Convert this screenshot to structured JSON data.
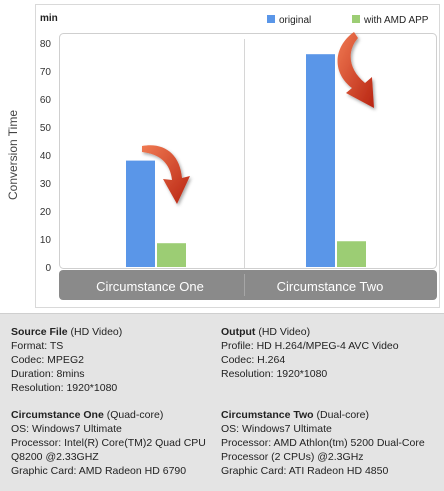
{
  "chart_data": {
    "type": "bar",
    "title": "",
    "unit_label": "min",
    "ylabel": "Conversion Time",
    "xlabel": "",
    "ylim": [
      0,
      80
    ],
    "y_ticks": [
      0,
      10,
      20,
      30,
      40,
      50,
      60,
      70,
      80
    ],
    "categories": [
      "Circumstance One",
      "Circumstance Two"
    ],
    "series": [
      {
        "name": "original",
        "color": "#5a96e8",
        "values": [
          38,
          76
        ]
      },
      {
        "name": "with AMD APP",
        "color": "#9ccd74",
        "values": [
          8.5,
          9.2
        ]
      }
    ],
    "legend_position": "top-right",
    "grid": false,
    "annotations": [
      "red-arrow-down-circumstance-one",
      "red-arrow-down-circumstance-two"
    ],
    "colors": {
      "axis_band": "#8a8a8a",
      "arrow": "#d93a1f"
    }
  },
  "info": {
    "source": {
      "title": "Source File",
      "subtitle": " (HD Video)",
      "lines": [
        "Format: TS",
        "Codec: MPEG2",
        "Duration: 8mins",
        "Resolution: 1920*1080"
      ]
    },
    "output": {
      "title": "Output",
      "subtitle": " (HD Video)",
      "lines": [
        "Profile: HD H.264/MPEG-4 AVC Video",
        "Codec: H.264",
        "Resolution: 1920*1080"
      ]
    },
    "circ_one": {
      "title": "Circumstance One",
      "subtitle": " (Quad-core)",
      "lines": [
        "OS: Windows7 Ultimate",
        "Processor: Intel(R) Core(TM)2 Quad CPU",
        "Q8200 @2.33GHZ",
        "Graphic Card: AMD Radeon HD 6790"
      ]
    },
    "circ_two": {
      "title": "Circumstance Two",
      "subtitle": " (Dual-core)",
      "lines": [
        "OS: Windows7 Ultimate",
        "Processor: AMD Athlon(tm) 5200 Dual-Core",
        "Processor (2 CPUs) @2.3GHz",
        "Graphic Card: ATI Radeon HD 4850"
      ]
    }
  }
}
